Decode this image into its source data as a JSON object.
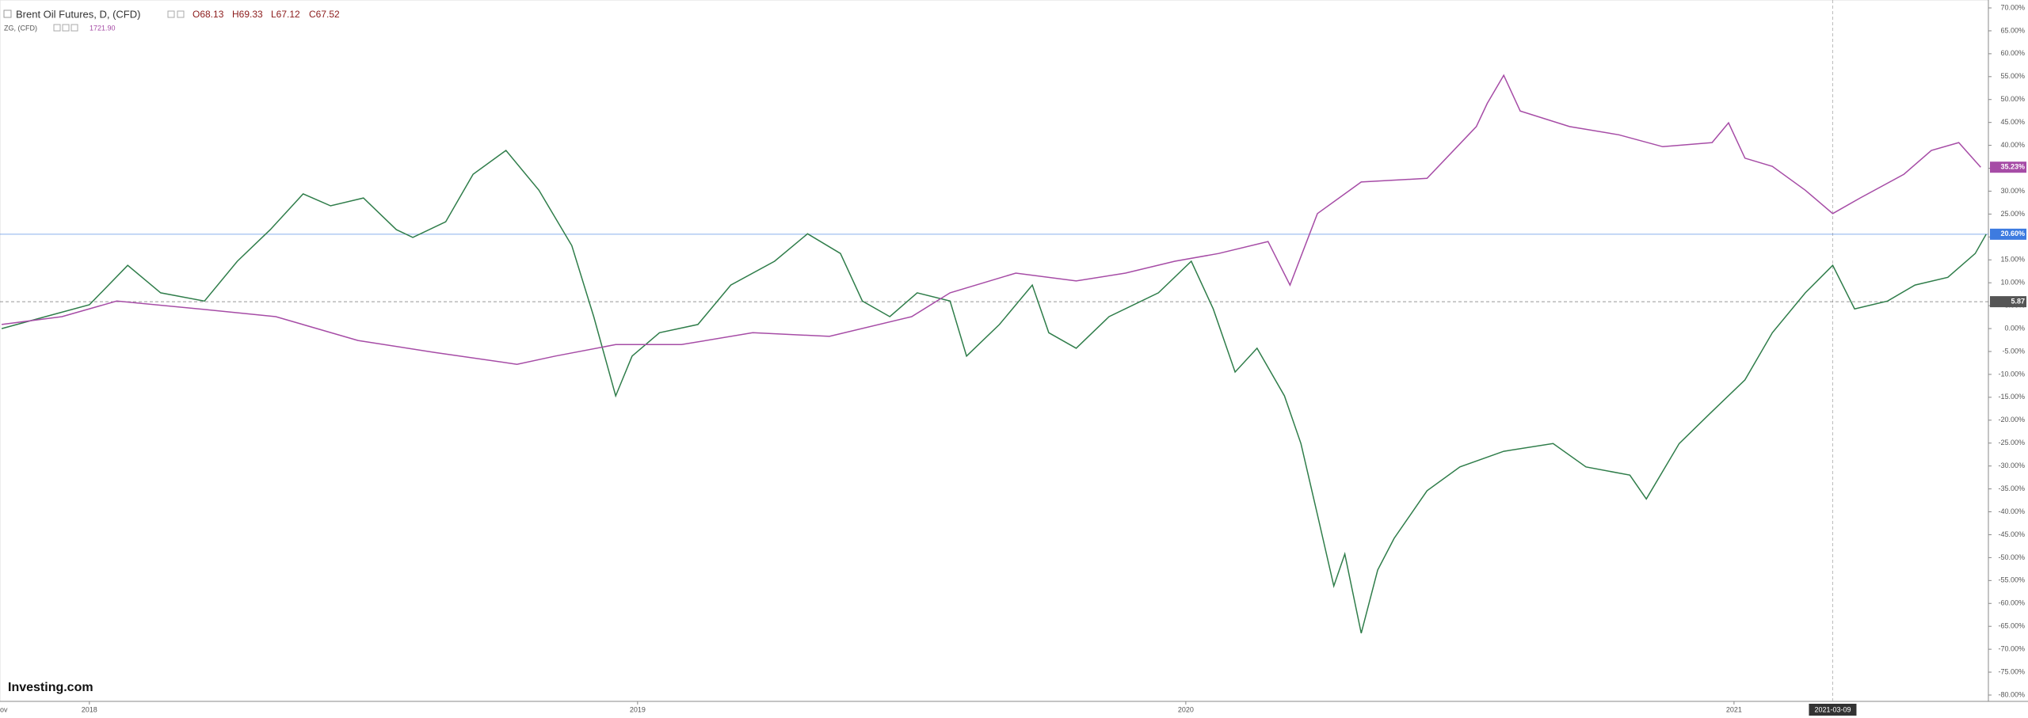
{
  "header": {
    "symbol": "Brent Oil Futures, D, (CFD)",
    "open": "O68.13",
    "high": "H69.33",
    "low": "L67.12",
    "close": "C67.52",
    "compare_symbol": "ZG, (CFD)",
    "compare_value": "1721.90",
    "logo": "Investing.com"
  },
  "chart_data": {
    "type": "line",
    "grid": false,
    "xlim": [
      2017.837,
      2021.464
    ],
    "ylim": [
      -80,
      70
    ],
    "xticks": [
      {
        "value": 2017.835,
        "label": "ov"
      },
      {
        "value": 2018,
        "label": "2018"
      },
      {
        "value": 2019,
        "label": "2019"
      },
      {
        "value": 2020,
        "label": "2020"
      },
      {
        "value": 2021,
        "label": "2021"
      }
    ],
    "yticks": [
      {
        "value": 70,
        "label": "70.00%"
      },
      {
        "value": 65,
        "label": "65.00%"
      },
      {
        "value": 60,
        "label": "60.00%"
      },
      {
        "value": 55,
        "label": "55.00%"
      },
      {
        "value": 50,
        "label": "50.00%"
      },
      {
        "value": 45,
        "label": "45.00%"
      },
      {
        "value": 40,
        "label": "40.00%"
      },
      {
        "value": 35,
        "label": "35.00%"
      },
      {
        "value": 30,
        "label": "30.00%"
      },
      {
        "value": 25,
        "label": "25.00%"
      },
      {
        "value": 20,
        "label": "20.00%"
      },
      {
        "value": 15,
        "label": "15.00%"
      },
      {
        "value": 10,
        "label": "10.00%"
      },
      {
        "value": 5,
        "label": "5.00%"
      },
      {
        "value": 0,
        "label": "0.00%"
      },
      {
        "value": -5,
        "label": "-5.00%"
      },
      {
        "value": -10,
        "label": "-10.00%"
      },
      {
        "value": -15,
        "label": "-15.00%"
      },
      {
        "value": -20,
        "label": "-20.00%"
      },
      {
        "value": -25,
        "label": "-25.00%"
      },
      {
        "value": -30,
        "label": "-30.00%"
      },
      {
        "value": -35,
        "label": "-35.00%"
      },
      {
        "value": -40,
        "label": "-40.00%"
      },
      {
        "value": -45,
        "label": "-45.00%"
      },
      {
        "value": -50,
        "label": "-50.00%"
      },
      {
        "value": -55,
        "label": "-55.00%"
      },
      {
        "value": -60,
        "label": "-60.00%"
      },
      {
        "value": -65,
        "label": "-65.00%"
      },
      {
        "value": -70,
        "label": "-70.00%"
      },
      {
        "value": -75,
        "label": "-75.00%"
      },
      {
        "value": -80,
        "label": "-80.00%"
      }
    ],
    "series": [
      {
        "name": "Brent Oil Futures, D, (CFD)",
        "color": "#2f7d4a",
        "x": [
          2017.84,
          2017.92,
          2018.0,
          2018.07,
          2018.13,
          2018.21,
          2018.27,
          2018.33,
          2018.39,
          2018.44,
          2018.5,
          2018.56,
          2018.59,
          2018.65,
          2018.7,
          2018.76,
          2018.82,
          2018.88,
          2018.92,
          2018.96,
          2018.99,
          2019.04,
          2019.11,
          2019.17,
          2019.25,
          2019.31,
          2019.37,
          2019.41,
          2019.46,
          2019.51,
          2019.57,
          2019.6,
          2019.66,
          2019.72,
          2019.75,
          2019.8,
          2019.86,
          2019.95,
          2020.01,
          2020.05,
          2020.09,
          2020.13,
          2020.18,
          2020.21,
          2020.24,
          2020.27,
          2020.29,
          2020.32,
          2020.35,
          2020.38,
          2020.44,
          2020.5,
          2020.58,
          2020.67,
          2020.73,
          2020.81,
          2020.84,
          2020.9,
          2020.96,
          2021.02,
          2021.07,
          2021.13,
          2021.18,
          2021.22,
          2021.28,
          2021.33,
          2021.39,
          2021.44,
          2021.46
        ],
        "values": [
          0,
          2.6,
          5.2,
          13.8,
          7.8,
          6.0,
          14.7,
          21.6,
          29.4,
          26.8,
          28.5,
          21.6,
          19.9,
          23.3,
          33.7,
          38.9,
          30.2,
          18.1,
          2.6,
          -14.7,
          -6.0,
          -0.9,
          0.9,
          9.5,
          14.7,
          20.7,
          16.4,
          6.0,
          2.6,
          7.8,
          6.0,
          -6.0,
          0.9,
          9.5,
          -0.9,
          -4.3,
          2.6,
          7.8,
          14.7,
          4.3,
          -9.5,
          -4.3,
          -14.7,
          -25.1,
          -40.6,
          -56.2,
          -49.2,
          -66.5,
          -52.7,
          -45.8,
          -35.4,
          -30.2,
          -26.8,
          -25.1,
          -30.2,
          -32.0,
          -37.2,
          -25.1,
          -18.1,
          -11.2,
          -0.9,
          7.8,
          13.8,
          4.3,
          6.0,
          9.5,
          11.2,
          16.4,
          20.6
        ]
      },
      {
        "name": "ZG, (CFD)",
        "color": "#a64ca6",
        "x": [
          2017.84,
          2017.95,
          2018.05,
          2018.2,
          2018.34,
          2018.49,
          2018.63,
          2018.78,
          2018.85,
          2018.96,
          2019.08,
          2019.21,
          2019.35,
          2019.5,
          2019.57,
          2019.69,
          2019.8,
          2019.89,
          2019.98,
          2020.06,
          2020.15,
          2020.19,
          2020.24,
          2020.32,
          2020.44,
          2020.53,
          2020.55,
          2020.58,
          2020.61,
          2020.7,
          2020.79,
          2020.87,
          2020.96,
          2020.99,
          2021.02,
          2021.07,
          2021.13,
          2021.18,
          2021.23,
          2021.31,
          2021.36,
          2021.41,
          2021.45
        ],
        "values": [
          0.9,
          2.6,
          6.0,
          4.3,
          2.6,
          -2.6,
          -5.2,
          -7.8,
          -6.0,
          -3.5,
          -3.5,
          -0.9,
          -1.7,
          2.6,
          7.8,
          12.1,
          10.4,
          12.1,
          14.7,
          16.4,
          19.0,
          9.5,
          25.1,
          32.0,
          32.8,
          44.1,
          49.2,
          55.3,
          47.5,
          44.1,
          42.3,
          39.7,
          40.6,
          44.9,
          37.2,
          35.4,
          30.2,
          25.1,
          28.5,
          33.7,
          38.9,
          40.6,
          35.23
        ]
      }
    ],
    "price_labels": [
      {
        "value": 35.23,
        "label": "35.23%",
        "color": "#a64ca6",
        "line": false
      },
      {
        "value": 20.6,
        "label": "20.60%",
        "color": "#3d7be0",
        "line": true
      },
      {
        "value": 5.87,
        "label": "5.87",
        "color": "#555555",
        "line": true
      }
    ],
    "crosshair": {
      "x": 2021.18,
      "label": "2021-03-09"
    }
  }
}
